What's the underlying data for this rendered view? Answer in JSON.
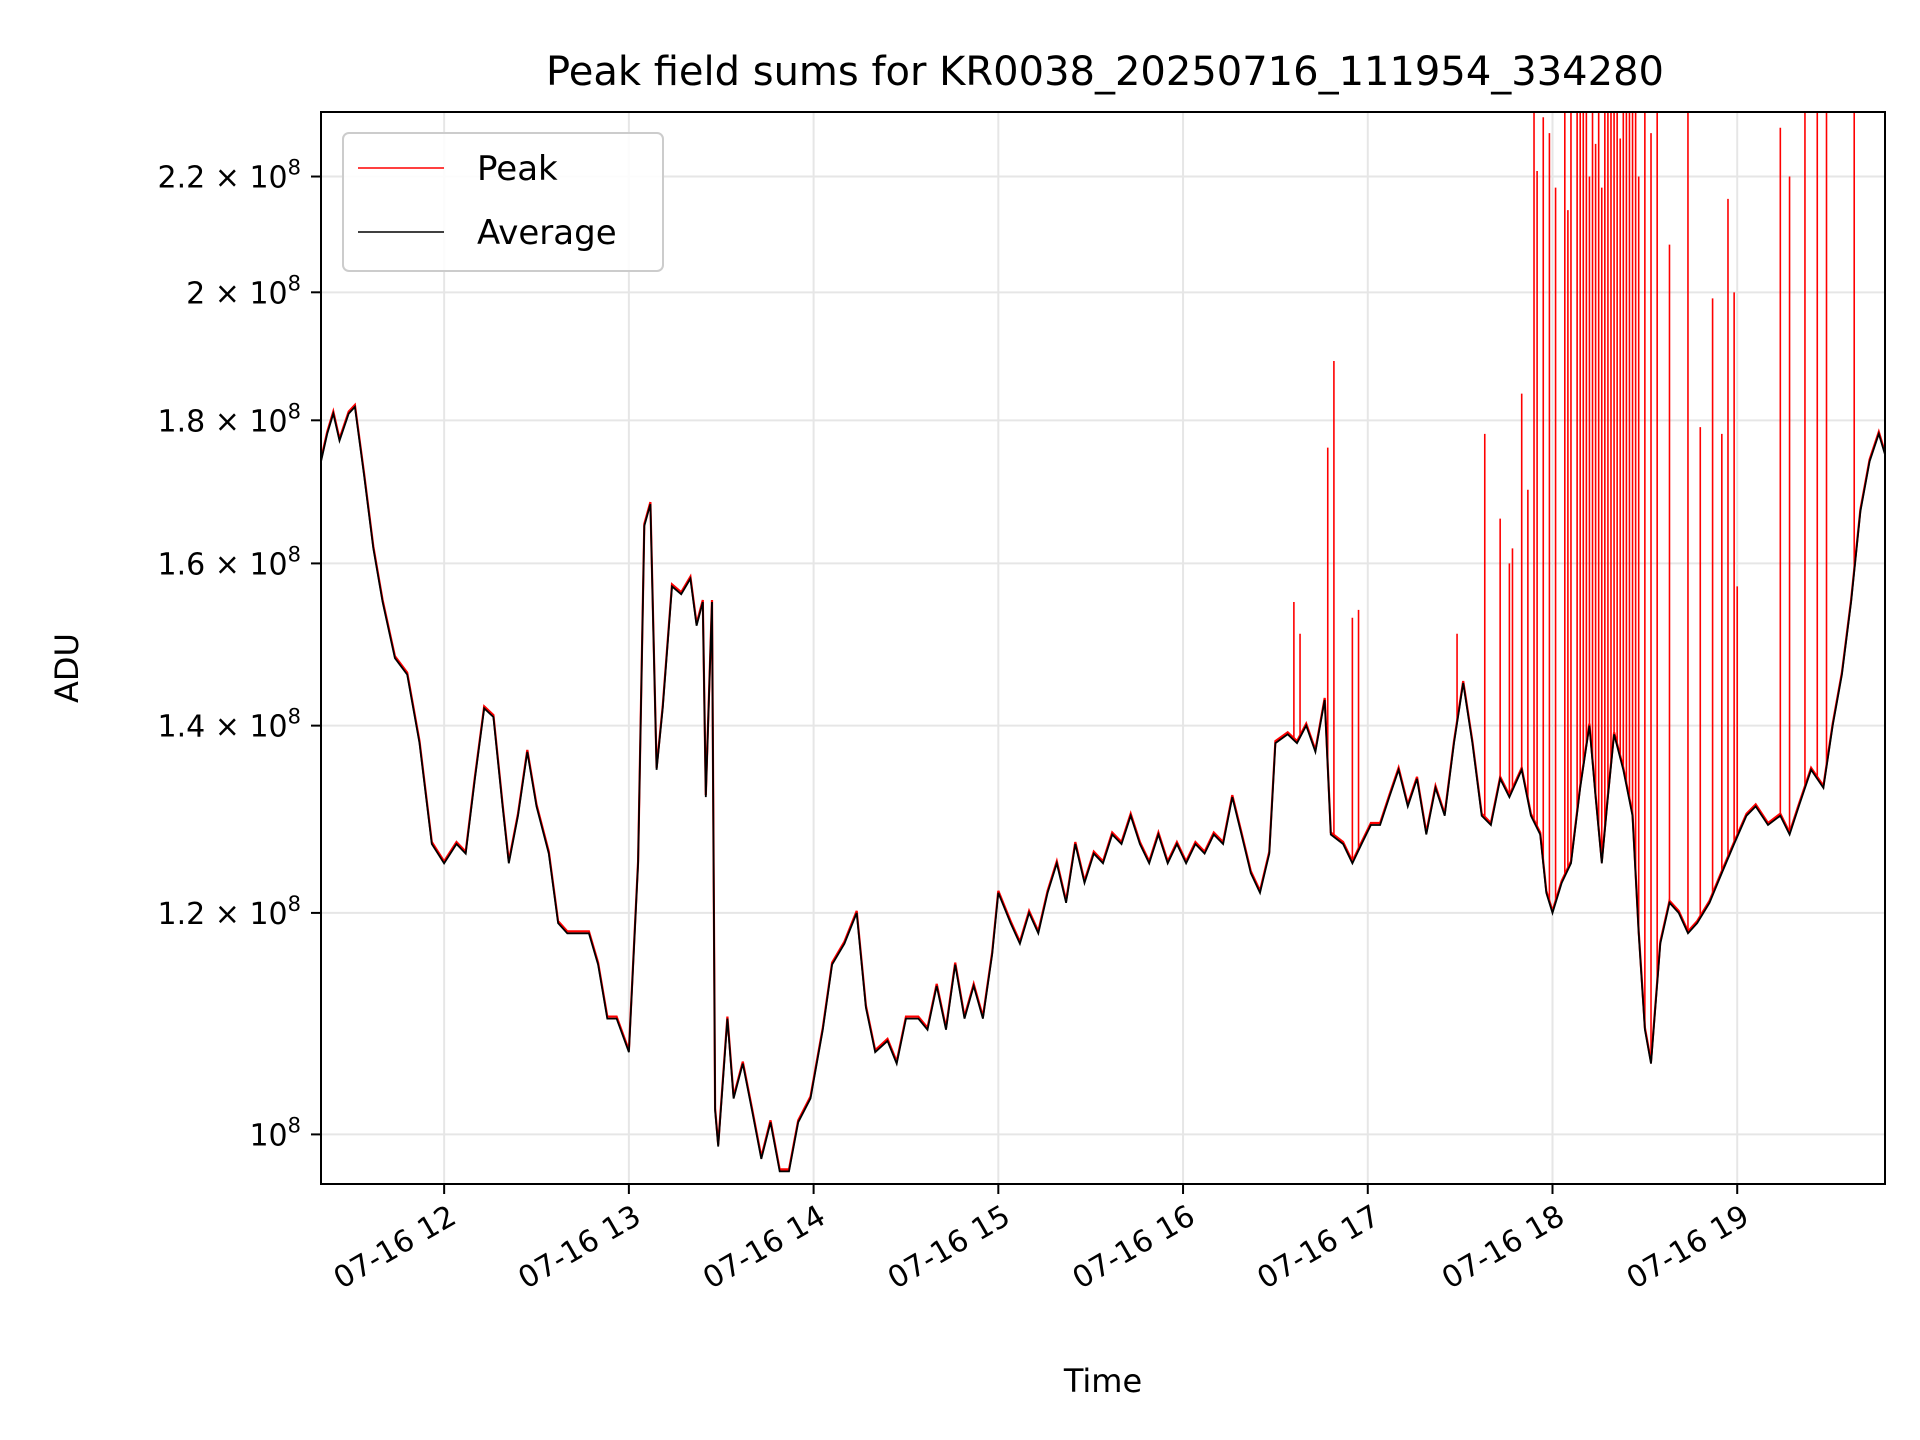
{
  "chart_data": {
    "type": "line",
    "title": "Peak field sums for KR0038_20250716_111954_334280",
    "xlabel": "Time",
    "ylabel": "ADU",
    "yscale": "log",
    "grid": true,
    "legend_placement": "top-left",
    "xlim": [
      "2025-07-16T11:20",
      "2025-07-16T19:48"
    ],
    "ylim": [
      96000000,
      232000000
    ],
    "x_ticks": [
      "2025-07-16T12:00",
      "2025-07-16T13:00",
      "2025-07-16T14:00",
      "2025-07-16T15:00",
      "2025-07-16T16:00",
      "2025-07-16T17:00",
      "2025-07-16T18:00",
      "2025-07-16T19:00"
    ],
    "x_tick_labels": [
      "07-16 12",
      "07-16 13",
      "07-16 14",
      "07-16 15",
      "07-16 16",
      "07-16 17",
      "07-16 18",
      "07-16 19"
    ],
    "y_ticks": [
      {
        "value": 100000000,
        "mantissa": "",
        "exponent": "8"
      },
      {
        "value": 120000000,
        "mantissa": "1.2",
        "exponent": "8"
      },
      {
        "value": 140000000,
        "mantissa": "1.4",
        "exponent": "8"
      },
      {
        "value": 160000000,
        "mantissa": "1.6",
        "exponent": "8"
      },
      {
        "value": 180000000,
        "mantissa": "1.8",
        "exponent": "8"
      },
      {
        "value": 200000000,
        "mantissa": "2",
        "exponent": "8"
      },
      {
        "value": 220000000,
        "mantissa": "2.2",
        "exponent": "8"
      }
    ],
    "tick_base": "10",
    "series": [
      {
        "name": "Average",
        "color": "#000000",
        "points": [
          [
            "2025-07-16T11:20",
            174
          ],
          [
            "2025-07-16T11:22",
            178
          ],
          [
            "2025-07-16T11:24",
            181
          ],
          [
            "2025-07-16T11:26",
            177
          ],
          [
            "2025-07-16T11:29",
            181
          ],
          [
            "2025-07-16T11:31",
            182
          ],
          [
            "2025-07-16T11:34",
            172
          ],
          [
            "2025-07-16T11:37",
            162
          ],
          [
            "2025-07-16T11:40",
            155
          ],
          [
            "2025-07-16T11:44",
            148
          ],
          [
            "2025-07-16T11:48",
            146
          ],
          [
            "2025-07-16T11:52",
            138
          ],
          [
            "2025-07-16T11:56",
            127
          ],
          [
            "2025-07-16T12:00",
            125
          ],
          [
            "2025-07-16T12:04",
            127
          ],
          [
            "2025-07-16T12:07",
            126
          ],
          [
            "2025-07-16T12:10",
            134
          ],
          [
            "2025-07-16T12:13",
            142
          ],
          [
            "2025-07-16T12:16",
            141
          ],
          [
            "2025-07-16T12:19",
            131
          ],
          [
            "2025-07-16T12:21",
            125
          ],
          [
            "2025-07-16T12:24",
            130
          ],
          [
            "2025-07-16T12:27",
            137
          ],
          [
            "2025-07-16T12:30",
            131
          ],
          [
            "2025-07-16T12:34",
            126
          ],
          [
            "2025-07-16T12:37",
            119
          ],
          [
            "2025-07-16T12:40",
            118
          ],
          [
            "2025-07-16T12:43",
            118
          ],
          [
            "2025-07-16T12:47",
            118
          ],
          [
            "2025-07-16T12:50",
            115
          ],
          [
            "2025-07-16T12:53",
            110
          ],
          [
            "2025-07-16T12:56",
            110
          ],
          [
            "2025-07-16T13:00",
            107
          ],
          [
            "2025-07-16T13:03",
            125
          ],
          [
            "2025-07-16T13:05",
            165
          ],
          [
            "2025-07-16T13:07",
            168
          ],
          [
            "2025-07-16T13:09",
            135
          ],
          [
            "2025-07-16T13:11",
            142
          ],
          [
            "2025-07-16T13:14",
            157
          ],
          [
            "2025-07-16T13:17",
            156
          ],
          [
            "2025-07-16T13:20",
            158
          ],
          [
            "2025-07-16T13:22",
            152
          ],
          [
            "2025-07-16T13:24",
            155
          ],
          [
            "2025-07-16T13:25",
            132
          ],
          [
            "2025-07-16T13:27",
            155
          ],
          [
            "2025-07-16T13:28",
            102
          ],
          [
            "2025-07-16T13:29",
            99
          ],
          [
            "2025-07-16T13:32",
            110
          ],
          [
            "2025-07-16T13:34",
            103
          ],
          [
            "2025-07-16T13:37",
            106
          ],
          [
            "2025-07-16T13:40",
            102
          ],
          [
            "2025-07-16T13:43",
            98
          ],
          [
            "2025-07-16T13:46",
            101
          ],
          [
            "2025-07-16T13:49",
            97
          ],
          [
            "2025-07-16T13:52",
            97
          ],
          [
            "2025-07-16T13:55",
            101
          ],
          [
            "2025-07-16T13:59",
            103
          ],
          [
            "2025-07-16T14:03",
            109
          ],
          [
            "2025-07-16T14:06",
            115
          ],
          [
            "2025-07-16T14:10",
            117
          ],
          [
            "2025-07-16T14:14",
            120
          ],
          [
            "2025-07-16T14:17",
            111
          ],
          [
            "2025-07-16T14:20",
            107
          ],
          [
            "2025-07-16T14:24",
            108
          ],
          [
            "2025-07-16T14:27",
            106
          ],
          [
            "2025-07-16T14:30",
            110
          ],
          [
            "2025-07-16T14:34",
            110
          ],
          [
            "2025-07-16T14:37",
            109
          ],
          [
            "2025-07-16T14:40",
            113
          ],
          [
            "2025-07-16T14:43",
            109
          ],
          [
            "2025-07-16T14:46",
            115
          ],
          [
            "2025-07-16T14:49",
            110
          ],
          [
            "2025-07-16T14:52",
            113
          ],
          [
            "2025-07-16T14:55",
            110
          ],
          [
            "2025-07-16T14:58",
            116
          ],
          [
            "2025-07-16T15:00",
            122
          ],
          [
            "2025-07-16T15:04",
            119
          ],
          [
            "2025-07-16T15:07",
            117
          ],
          [
            "2025-07-16T15:10",
            120
          ],
          [
            "2025-07-16T15:13",
            118
          ],
          [
            "2025-07-16T15:16",
            122
          ],
          [
            "2025-07-16T15:19",
            125
          ],
          [
            "2025-07-16T15:22",
            121
          ],
          [
            "2025-07-16T15:25",
            127
          ],
          [
            "2025-07-16T15:28",
            123
          ],
          [
            "2025-07-16T15:31",
            126
          ],
          [
            "2025-07-16T15:34",
            125
          ],
          [
            "2025-07-16T15:37",
            128
          ],
          [
            "2025-07-16T15:40",
            127
          ],
          [
            "2025-07-16T15:43",
            130
          ],
          [
            "2025-07-16T15:46",
            127
          ],
          [
            "2025-07-16T15:49",
            125
          ],
          [
            "2025-07-16T15:52",
            128
          ],
          [
            "2025-07-16T15:55",
            125
          ],
          [
            "2025-07-16T15:58",
            127
          ],
          [
            "2025-07-16T16:01",
            125
          ],
          [
            "2025-07-16T16:04",
            127
          ],
          [
            "2025-07-16T16:07",
            126
          ],
          [
            "2025-07-16T16:10",
            128
          ],
          [
            "2025-07-16T16:13",
            127
          ],
          [
            "2025-07-16T16:16",
            132
          ],
          [
            "2025-07-16T16:19",
            128
          ],
          [
            "2025-07-16T16:22",
            124
          ],
          [
            "2025-07-16T16:25",
            122
          ],
          [
            "2025-07-16T16:28",
            126
          ],
          [
            "2025-07-16T16:30",
            138
          ],
          [
            "2025-07-16T16:34",
            139
          ],
          [
            "2025-07-16T16:37",
            138
          ],
          [
            "2025-07-16T16:40",
            140
          ],
          [
            "2025-07-16T16:43",
            137
          ],
          [
            "2025-07-16T16:46",
            143
          ],
          [
            "2025-07-16T16:48",
            128
          ],
          [
            "2025-07-16T16:52",
            127
          ],
          [
            "2025-07-16T16:55",
            125
          ],
          [
            "2025-07-16T16:58",
            127
          ],
          [
            "2025-07-16T17:01",
            129
          ],
          [
            "2025-07-16T17:04",
            129
          ],
          [
            "2025-07-16T17:07",
            132
          ],
          [
            "2025-07-16T17:10",
            135
          ],
          [
            "2025-07-16T17:13",
            131
          ],
          [
            "2025-07-16T17:16",
            134
          ],
          [
            "2025-07-16T17:19",
            128
          ],
          [
            "2025-07-16T17:22",
            133
          ],
          [
            "2025-07-16T17:25",
            130
          ],
          [
            "2025-07-16T17:28",
            138
          ],
          [
            "2025-07-16T17:31",
            145
          ],
          [
            "2025-07-16T17:34",
            138
          ],
          [
            "2025-07-16T17:37",
            130
          ],
          [
            "2025-07-16T17:40",
            129
          ],
          [
            "2025-07-16T17:43",
            134
          ],
          [
            "2025-07-16T17:46",
            132
          ],
          [
            "2025-07-16T17:50",
            135
          ],
          [
            "2025-07-16T17:53",
            130
          ],
          [
            "2025-07-16T17:56",
            128
          ],
          [
            "2025-07-16T17:58",
            122
          ],
          [
            "2025-07-16T18:00",
            120
          ],
          [
            "2025-07-16T18:03",
            123
          ],
          [
            "2025-07-16T18:06",
            125
          ],
          [
            "2025-07-16T18:09",
            133
          ],
          [
            "2025-07-16T18:12",
            140
          ],
          [
            "2025-07-16T18:14",
            132
          ],
          [
            "2025-07-16T18:16",
            125
          ],
          [
            "2025-07-16T18:18",
            132
          ],
          [
            "2025-07-16T18:20",
            139
          ],
          [
            "2025-07-16T18:23",
            135
          ],
          [
            "2025-07-16T18:26",
            130
          ],
          [
            "2025-07-16T18:28",
            118
          ],
          [
            "2025-07-16T18:30",
            109
          ],
          [
            "2025-07-16T18:32",
            106
          ],
          [
            "2025-07-16T18:35",
            117
          ],
          [
            "2025-07-16T18:38",
            121
          ],
          [
            "2025-07-16T18:41",
            120
          ],
          [
            "2025-07-16T18:44",
            118
          ],
          [
            "2025-07-16T18:47",
            119
          ],
          [
            "2025-07-16T18:51",
            121
          ],
          [
            "2025-07-16T18:55",
            124
          ],
          [
            "2025-07-16T18:59",
            127
          ],
          [
            "2025-07-16T19:03",
            130
          ],
          [
            "2025-07-16T19:06",
            131
          ],
          [
            "2025-07-16T19:10",
            129
          ],
          [
            "2025-07-16T19:14",
            130
          ],
          [
            "2025-07-16T19:17",
            128
          ],
          [
            "2025-07-16T19:20",
            131
          ],
          [
            "2025-07-16T19:24",
            135
          ],
          [
            "2025-07-16T19:28",
            133
          ],
          [
            "2025-07-16T19:31",
            140
          ],
          [
            "2025-07-16T19:34",
            146
          ],
          [
            "2025-07-16T19:37",
            155
          ],
          [
            "2025-07-16T19:40",
            167
          ],
          [
            "2025-07-16T19:43",
            174
          ],
          [
            "2025-07-16T19:46",
            178
          ],
          [
            "2025-07-16T19:48",
            175
          ]
        ]
      },
      {
        "name": "Peak",
        "color": "#ff0000",
        "spikes": [
          [
            "2025-07-16T16:36",
            155
          ],
          [
            "2025-07-16T16:38",
            151
          ],
          [
            "2025-07-16T16:47",
            176
          ],
          [
            "2025-07-16T16:49",
            189
          ],
          [
            "2025-07-16T16:55",
            153
          ],
          [
            "2025-07-16T16:57",
            154
          ],
          [
            "2025-07-16T17:29",
            151
          ],
          [
            "2025-07-16T17:38",
            178
          ],
          [
            "2025-07-16T17:43",
            166
          ],
          [
            "2025-07-16T17:46",
            160
          ],
          [
            "2025-07-16T17:47",
            162
          ],
          [
            "2025-07-16T17:50",
            184
          ],
          [
            "2025-07-16T17:52",
            170
          ],
          [
            "2025-07-16T17:54",
            232
          ],
          [
            "2025-07-16T17:55",
            221
          ],
          [
            "2025-07-16T17:57",
            231
          ],
          [
            "2025-07-16T17:59",
            228
          ],
          [
            "2025-07-16T18:01",
            218
          ],
          [
            "2025-07-16T18:04",
            232
          ],
          [
            "2025-07-16T18:05",
            214
          ],
          [
            "2025-07-16T18:06",
            232
          ],
          [
            "2025-07-16T18:08",
            232
          ],
          [
            "2025-07-16T18:09",
            232
          ],
          [
            "2025-07-16T18:10",
            232
          ],
          [
            "2025-07-16T18:11",
            232
          ],
          [
            "2025-07-16T18:12",
            220
          ],
          [
            "2025-07-16T18:13",
            232
          ],
          [
            "2025-07-16T18:14",
            226
          ],
          [
            "2025-07-16T18:15",
            232
          ],
          [
            "2025-07-16T18:16",
            218
          ],
          [
            "2025-07-16T18:17",
            232
          ],
          [
            "2025-07-16T18:18",
            232
          ],
          [
            "2025-07-16T18:19",
            232
          ],
          [
            "2025-07-16T18:20",
            232
          ],
          [
            "2025-07-16T18:21",
            232
          ],
          [
            "2025-07-16T18:22",
            227
          ],
          [
            "2025-07-16T18:23",
            232
          ],
          [
            "2025-07-16T18:24",
            232
          ],
          [
            "2025-07-16T18:25",
            232
          ],
          [
            "2025-07-16T18:26",
            232
          ],
          [
            "2025-07-16T18:27",
            232
          ],
          [
            "2025-07-16T18:28",
            220
          ],
          [
            "2025-07-16T18:30",
            232
          ],
          [
            "2025-07-16T18:32",
            228
          ],
          [
            "2025-07-16T18:34",
            232
          ],
          [
            "2025-07-16T18:38",
            208
          ],
          [
            "2025-07-16T18:44",
            232
          ],
          [
            "2025-07-16T18:48",
            179
          ],
          [
            "2025-07-16T18:52",
            199
          ],
          [
            "2025-07-16T18:55",
            178
          ],
          [
            "2025-07-16T18:57",
            216
          ],
          [
            "2025-07-16T18:59",
            200
          ],
          [
            "2025-07-16T18:60",
            157
          ],
          [
            "2025-07-16T19:14",
            229
          ],
          [
            "2025-07-16T19:17",
            220
          ],
          [
            "2025-07-16T19:22",
            232
          ],
          [
            "2025-07-16T19:26",
            232
          ],
          [
            "2025-07-16T19:29",
            232
          ],
          [
            "2025-07-16T19:38",
            232
          ]
        ]
      }
    ]
  }
}
